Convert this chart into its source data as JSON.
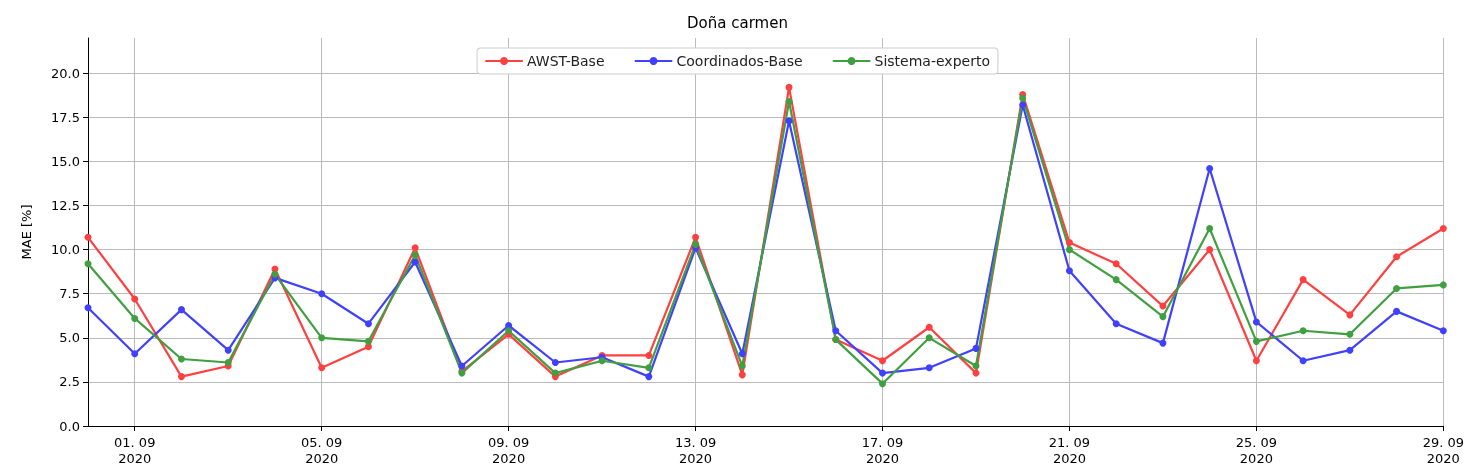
{
  "chart_data": {
    "type": "line",
    "title": "Doña carmen",
    "ylabel": "MAE [%]",
    "x": [
      "2020-08-31",
      "2020-09-01",
      "2020-09-02",
      "2020-09-03",
      "2020-09-04",
      "2020-09-05",
      "2020-09-06",
      "2020-09-07",
      "2020-09-08",
      "2020-09-09",
      "2020-09-10",
      "2020-09-11",
      "2020-09-12",
      "2020-09-13",
      "2020-09-14",
      "2020-09-15",
      "2020-09-16",
      "2020-09-17",
      "2020-09-18",
      "2020-09-19",
      "2020-09-20",
      "2020-09-21",
      "2020-09-22",
      "2020-09-23",
      "2020-09-24",
      "2020-09-25",
      "2020-09-26",
      "2020-09-27",
      "2020-09-28",
      "2020-09-29"
    ],
    "series": [
      {
        "name": "AWST-Base",
        "color": "#ff4040",
        "values": [
          10.7,
          7.2,
          2.8,
          3.4,
          8.9,
          3.3,
          4.5,
          10.1,
          3.1,
          5.2,
          2.8,
          4.0,
          4.0,
          10.7,
          2.9,
          19.2,
          4.9,
          3.7,
          5.6,
          3.0,
          18.8,
          10.4,
          9.2,
          6.8,
          10.0,
          3.7,
          8.3,
          6.3,
          9.6,
          11.2
        ]
      },
      {
        "name": "Coordinados-Base",
        "color": "#4040ff",
        "values": [
          6.7,
          4.1,
          6.6,
          4.3,
          8.4,
          7.5,
          5.8,
          9.3,
          3.4,
          5.7,
          3.6,
          3.9,
          2.8,
          10.1,
          4.1,
          17.3,
          5.4,
          3.0,
          3.3,
          4.4,
          18.2,
          8.8,
          5.8,
          4.7,
          14.6,
          5.9,
          3.7,
          4.3,
          6.5,
          5.4
        ]
      },
      {
        "name": "Sistema-experto",
        "color": "#409f40",
        "values": [
          9.2,
          6.1,
          3.8,
          3.6,
          8.6,
          5.0,
          4.8,
          9.7,
          3.0,
          5.4,
          3.0,
          3.7,
          3.3,
          10.3,
          3.4,
          18.4,
          4.9,
          2.4,
          5.0,
          3.4,
          18.6,
          10.0,
          8.3,
          6.2,
          11.2,
          4.8,
          5.4,
          5.2,
          7.8,
          8.0
        ]
      }
    ],
    "xlim": [
      "2020-08-31",
      "2020-09-29"
    ],
    "xticks": [
      {
        "value": "2020-09-01",
        "label": "01. 09\n2020"
      },
      {
        "value": "2020-09-05",
        "label": "05. 09\n2020"
      },
      {
        "value": "2020-09-09",
        "label": "09. 09\n2020"
      },
      {
        "value": "2020-09-13",
        "label": "13. 09\n2020"
      },
      {
        "value": "2020-09-17",
        "label": "17. 09\n2020"
      },
      {
        "value": "2020-09-21",
        "label": "21. 09\n2020"
      },
      {
        "value": "2020-09-25",
        "label": "25. 09\n2020"
      },
      {
        "value": "2020-09-29",
        "label": "29. 09\n2020"
      }
    ],
    "ylim": [
      0,
      22
    ],
    "yticks": [
      {
        "value": 0,
        "label": "0.0"
      },
      {
        "value": 2.5,
        "label": "2.5"
      },
      {
        "value": 5,
        "label": "5.0"
      },
      {
        "value": 7.5,
        "label": "7.5"
      },
      {
        "value": 10,
        "label": "10.0"
      },
      {
        "value": 12.5,
        "label": "12.5"
      },
      {
        "value": 15,
        "label": "15.0"
      },
      {
        "value": 17.5,
        "label": "17.5"
      },
      {
        "value": 20,
        "label": "20.0"
      }
    ],
    "grid": true,
    "legend": "top",
    "marker": "circle",
    "line_style": "solid"
  }
}
